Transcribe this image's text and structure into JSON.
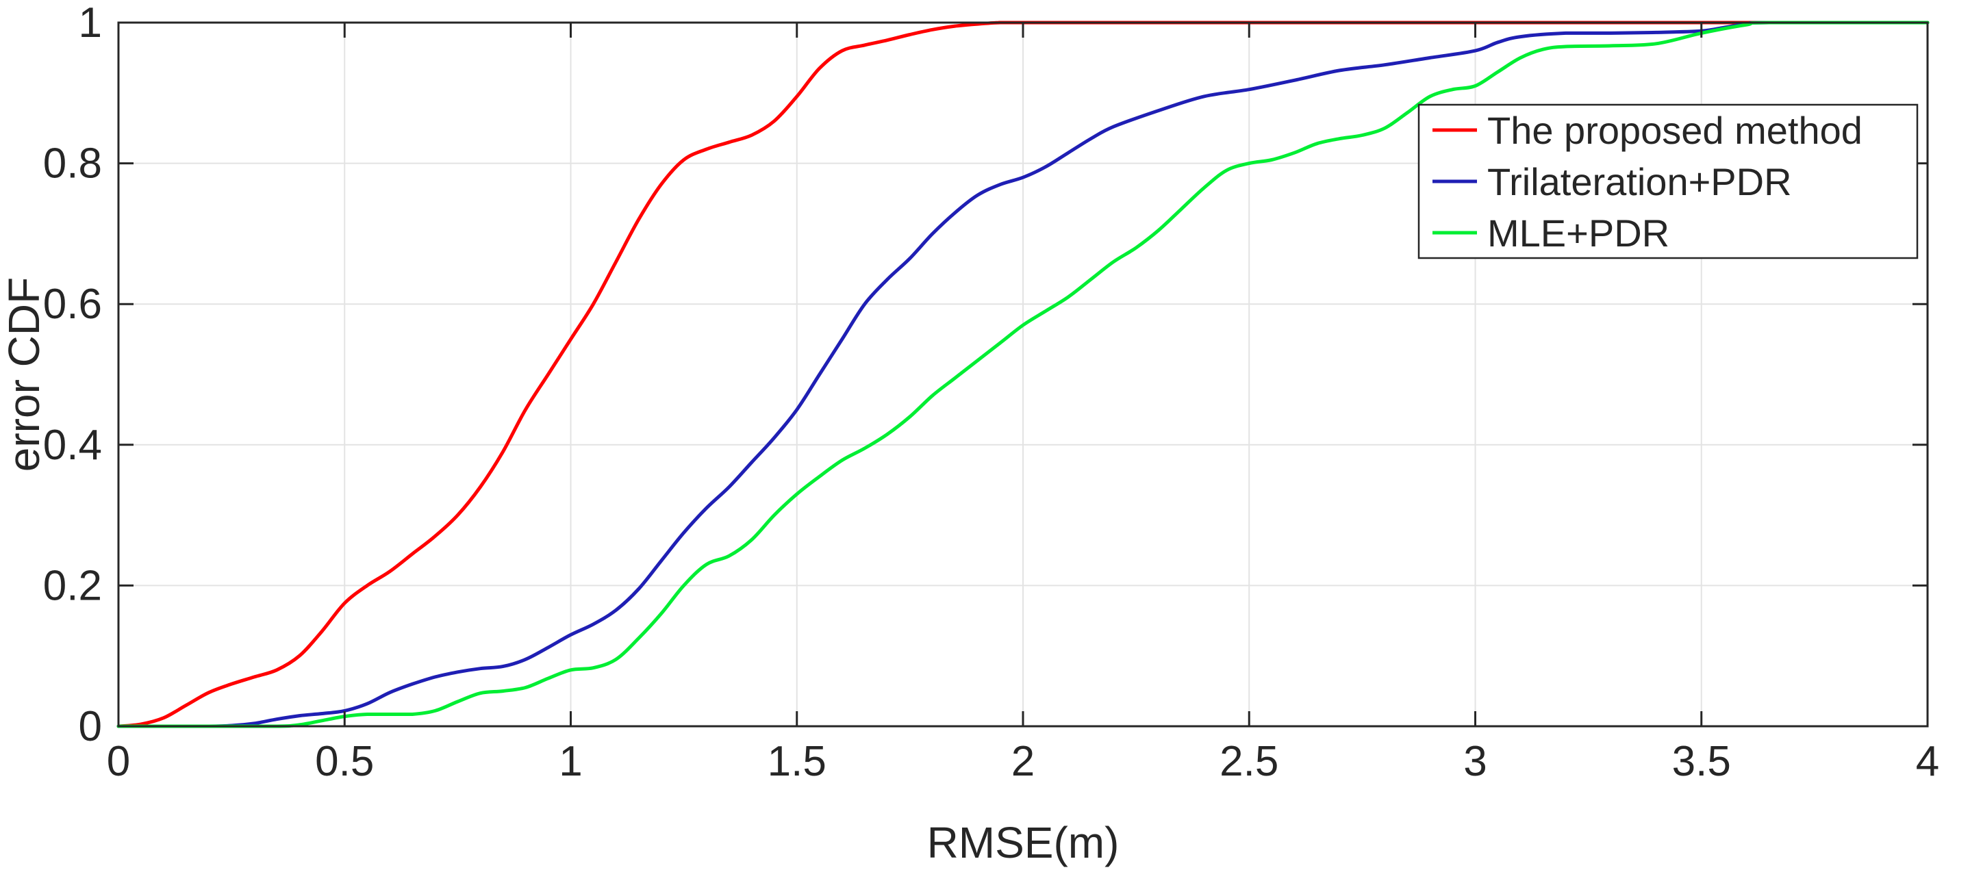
{
  "chart_data": {
    "type": "line",
    "title": "",
    "xlabel": "RMSE(m)",
    "ylabel": "error CDF",
    "xlim": [
      0,
      4
    ],
    "ylim": [
      0,
      1
    ],
    "x_ticks": [
      "0",
      "0.5",
      "1",
      "1.5",
      "2",
      "2.5",
      "3",
      "3.5",
      "4"
    ],
    "y_ticks": [
      "0",
      "0.2",
      "0.4",
      "0.6",
      "0.8",
      "1"
    ],
    "grid": true,
    "legend_position": "top-right",
    "series": [
      {
        "name": "The proposed method",
        "color": "#ff0000",
        "points": [
          [
            0,
            0
          ],
          [
            0.05,
            0.003
          ],
          [
            0.1,
            0.012
          ],
          [
            0.15,
            0.03
          ],
          [
            0.2,
            0.048
          ],
          [
            0.25,
            0.06
          ],
          [
            0.3,
            0.07
          ],
          [
            0.35,
            0.08
          ],
          [
            0.4,
            0.1
          ],
          [
            0.45,
            0.135
          ],
          [
            0.5,
            0.175
          ],
          [
            0.55,
            0.2
          ],
          [
            0.6,
            0.22
          ],
          [
            0.65,
            0.245
          ],
          [
            0.7,
            0.27
          ],
          [
            0.75,
            0.3
          ],
          [
            0.8,
            0.34
          ],
          [
            0.85,
            0.39
          ],
          [
            0.9,
            0.45
          ],
          [
            0.95,
            0.5
          ],
          [
            1.0,
            0.55
          ],
          [
            1.05,
            0.6
          ],
          [
            1.1,
            0.66
          ],
          [
            1.15,
            0.72
          ],
          [
            1.2,
            0.77
          ],
          [
            1.25,
            0.805
          ],
          [
            1.3,
            0.82
          ],
          [
            1.35,
            0.83
          ],
          [
            1.4,
            0.84
          ],
          [
            1.45,
            0.86
          ],
          [
            1.5,
            0.895
          ],
          [
            1.55,
            0.935
          ],
          [
            1.6,
            0.96
          ],
          [
            1.65,
            0.968
          ],
          [
            1.7,
            0.975
          ],
          [
            1.75,
            0.983
          ],
          [
            1.8,
            0.99
          ],
          [
            1.85,
            0.995
          ],
          [
            1.9,
            0.998
          ],
          [
            1.95,
            1.0
          ],
          [
            2.0,
            1.0
          ],
          [
            2.5,
            1.0
          ],
          [
            3.0,
            1.0
          ],
          [
            3.5,
            1.0
          ],
          [
            4.0,
            1.0
          ]
        ]
      },
      {
        "name": "Trilateration+PDR",
        "color": "#1f1fb4",
        "points": [
          [
            0,
            0
          ],
          [
            0.1,
            0
          ],
          [
            0.2,
            0
          ],
          [
            0.25,
            0.001
          ],
          [
            0.3,
            0.004
          ],
          [
            0.35,
            0.01
          ],
          [
            0.4,
            0.015
          ],
          [
            0.45,
            0.018
          ],
          [
            0.5,
            0.022
          ],
          [
            0.55,
            0.032
          ],
          [
            0.6,
            0.048
          ],
          [
            0.65,
            0.06
          ],
          [
            0.7,
            0.07
          ],
          [
            0.75,
            0.077
          ],
          [
            0.8,
            0.082
          ],
          [
            0.85,
            0.085
          ],
          [
            0.9,
            0.095
          ],
          [
            0.95,
            0.112
          ],
          [
            1.0,
            0.13
          ],
          [
            1.05,
            0.145
          ],
          [
            1.1,
            0.165
          ],
          [
            1.15,
            0.195
          ],
          [
            1.2,
            0.235
          ],
          [
            1.25,
            0.275
          ],
          [
            1.3,
            0.31
          ],
          [
            1.35,
            0.34
          ],
          [
            1.4,
            0.375
          ],
          [
            1.45,
            0.41
          ],
          [
            1.5,
            0.45
          ],
          [
            1.55,
            0.5
          ],
          [
            1.6,
            0.55
          ],
          [
            1.65,
            0.6
          ],
          [
            1.7,
            0.635
          ],
          [
            1.75,
            0.665
          ],
          [
            1.8,
            0.7
          ],
          [
            1.85,
            0.73
          ],
          [
            1.9,
            0.755
          ],
          [
            1.95,
            0.77
          ],
          [
            2.0,
            0.78
          ],
          [
            2.05,
            0.795
          ],
          [
            2.1,
            0.815
          ],
          [
            2.15,
            0.835
          ],
          [
            2.2,
            0.852
          ],
          [
            2.3,
            0.875
          ],
          [
            2.4,
            0.895
          ],
          [
            2.5,
            0.905
          ],
          [
            2.6,
            0.918
          ],
          [
            2.7,
            0.932
          ],
          [
            2.8,
            0.94
          ],
          [
            2.9,
            0.95
          ],
          [
            3.0,
            0.96
          ],
          [
            3.05,
            0.972
          ],
          [
            3.1,
            0.98
          ],
          [
            3.2,
            0.985
          ],
          [
            3.3,
            0.985
          ],
          [
            3.4,
            0.986
          ],
          [
            3.5,
            0.988
          ],
          [
            3.55,
            0.993
          ],
          [
            3.6,
            0.998
          ],
          [
            3.65,
            1.0
          ],
          [
            4.0,
            1.0
          ]
        ]
      },
      {
        "name": "MLE+PDR",
        "color": "#00ee33",
        "points": [
          [
            0,
            0
          ],
          [
            0.2,
            0
          ],
          [
            0.35,
            0
          ],
          [
            0.4,
            0.002
          ],
          [
            0.45,
            0.008
          ],
          [
            0.5,
            0.014
          ],
          [
            0.55,
            0.017
          ],
          [
            0.6,
            0.017
          ],
          [
            0.65,
            0.017
          ],
          [
            0.7,
            0.022
          ],
          [
            0.75,
            0.035
          ],
          [
            0.8,
            0.047
          ],
          [
            0.85,
            0.05
          ],
          [
            0.9,
            0.055
          ],
          [
            0.95,
            0.068
          ],
          [
            1.0,
            0.08
          ],
          [
            1.05,
            0.083
          ],
          [
            1.1,
            0.095
          ],
          [
            1.15,
            0.125
          ],
          [
            1.2,
            0.16
          ],
          [
            1.25,
            0.2
          ],
          [
            1.3,
            0.23
          ],
          [
            1.35,
            0.242
          ],
          [
            1.4,
            0.265
          ],
          [
            1.45,
            0.3
          ],
          [
            1.5,
            0.33
          ],
          [
            1.55,
            0.355
          ],
          [
            1.6,
            0.378
          ],
          [
            1.65,
            0.395
          ],
          [
            1.7,
            0.415
          ],
          [
            1.75,
            0.44
          ],
          [
            1.8,
            0.47
          ],
          [
            1.85,
            0.495
          ],
          [
            1.9,
            0.52
          ],
          [
            1.95,
            0.545
          ],
          [
            2.0,
            0.57
          ],
          [
            2.05,
            0.59
          ],
          [
            2.1,
            0.61
          ],
          [
            2.15,
            0.635
          ],
          [
            2.2,
            0.66
          ],
          [
            2.25,
            0.68
          ],
          [
            2.3,
            0.705
          ],
          [
            2.35,
            0.735
          ],
          [
            2.4,
            0.765
          ],
          [
            2.45,
            0.79
          ],
          [
            2.5,
            0.8
          ],
          [
            2.55,
            0.805
          ],
          [
            2.6,
            0.815
          ],
          [
            2.65,
            0.828
          ],
          [
            2.7,
            0.835
          ],
          [
            2.75,
            0.84
          ],
          [
            2.8,
            0.85
          ],
          [
            2.85,
            0.872
          ],
          [
            2.9,
            0.895
          ],
          [
            2.95,
            0.905
          ],
          [
            3.0,
            0.91
          ],
          [
            3.05,
            0.93
          ],
          [
            3.1,
            0.95
          ],
          [
            3.15,
            0.962
          ],
          [
            3.2,
            0.966
          ],
          [
            3.3,
            0.967
          ],
          [
            3.4,
            0.97
          ],
          [
            3.5,
            0.985
          ],
          [
            3.6,
            0.997
          ],
          [
            3.65,
            1.0
          ],
          [
            4.0,
            1.0
          ]
        ]
      }
    ]
  }
}
